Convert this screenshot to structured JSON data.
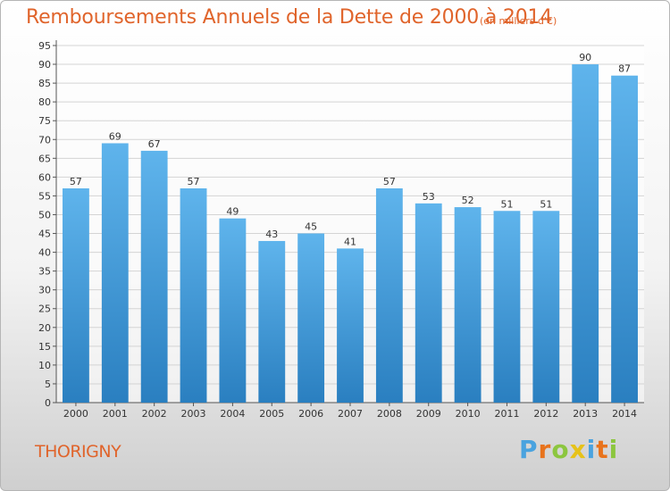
{
  "chart_data": {
    "type": "bar",
    "title": "Remboursements Annuels de la Dette de 2000 à 2014",
    "subtitle": "(en milliers d'€)",
    "categories": [
      "2000",
      "2001",
      "2002",
      "2003",
      "2004",
      "2005",
      "2006",
      "2007",
      "2008",
      "2009",
      "2010",
      "2011",
      "2012",
      "2013",
      "2014"
    ],
    "values": [
      57,
      69,
      67,
      57,
      49,
      43,
      45,
      41,
      57,
      53,
      52,
      51,
      51,
      90,
      87
    ],
    "ylim": [
      0,
      95
    ],
    "ytick_step": 5,
    "xlabel": "",
    "ylabel": "",
    "grid": true,
    "bar_color": "#3d9be0"
  },
  "footer": {
    "label": "THORIGNY"
  },
  "logo": {
    "letters": [
      "P",
      "r",
      "o",
      "x",
      "i",
      "t",
      "i"
    ],
    "colors": [
      "#4aa3df",
      "#e8731c",
      "#8cc63f",
      "#e6c219",
      "#4aa3df",
      "#e8731c",
      "#8cc63f"
    ]
  }
}
